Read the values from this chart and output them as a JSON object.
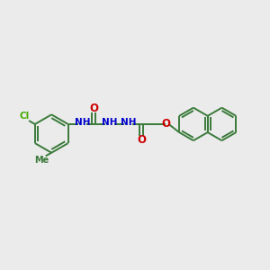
{
  "background_color": "#ebebeb",
  "bond_color": "#3a7a3a",
  "N_color": "#0000cc",
  "O_color": "#cc0000",
  "Cl_color": "#44aa00",
  "figsize": [
    3.0,
    3.0
  ],
  "dpi": 100,
  "xlim": [
    0,
    10
  ],
  "ylim": [
    0,
    10
  ]
}
